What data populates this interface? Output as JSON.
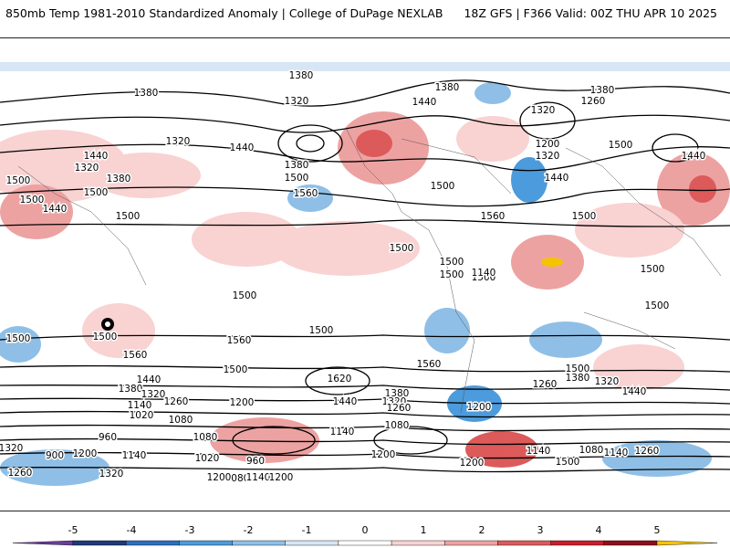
{
  "header": {
    "title_left": "850mb Temp 1981-2010 Standardized Anomaly | College of DuPage NEXLAB",
    "title_right": "18Z GFS | F366 Valid: 00Z THU APR 10 2025"
  },
  "colorbar": {
    "tick_labels": [
      "-5",
      "-4",
      "-3",
      "-2",
      "-1",
      "0",
      "1",
      "2",
      "3",
      "4",
      "5"
    ],
    "colors": [
      "#6a3d9a",
      "#1f3a7a",
      "#2c6fbf",
      "#4c9bdc",
      "#8fbfe6",
      "#d7e6f4",
      "#ffffff",
      "#f9d2d2",
      "#eda2a2",
      "#dd5a5a",
      "#c81e2a",
      "#8e0f1a",
      "#f5c400"
    ]
  },
  "map_labels": [
    {
      "text": "1380",
      "region": "n-pacific-top"
    },
    {
      "text": "1380",
      "region": "nw-pacific"
    },
    {
      "text": "1320",
      "region": "n-pacific-low"
    },
    {
      "text": "1320",
      "region": "e-asia"
    },
    {
      "text": "1440",
      "region": "e-asia-west"
    },
    {
      "text": "1320",
      "region": "siberia"
    },
    {
      "text": "1380",
      "region": "siberia-2"
    },
    {
      "text": "1500",
      "region": "central-asia"
    },
    {
      "text": "1500",
      "region": "central-asia-2"
    },
    {
      "text": "1440",
      "region": "s-asia"
    },
    {
      "text": "1500",
      "region": "se-asia"
    },
    {
      "text": "1440",
      "region": "n-pacific-mid"
    },
    {
      "text": "1380",
      "region": "gulf-alaska"
    },
    {
      "text": "1500",
      "region": "ne-pacific"
    },
    {
      "text": "1560",
      "region": "e-pacific"
    },
    {
      "text": "1440",
      "region": "canada"
    },
    {
      "text": "1380",
      "region": "hudson"
    },
    {
      "text": "1500",
      "region": "us-east"
    },
    {
      "text": "1560",
      "region": "w-atlantic"
    },
    {
      "text": "1380",
      "region": "n-atlantic"
    },
    {
      "text": "1320",
      "region": "greenland-sea"
    },
    {
      "text": "1260",
      "region": "scandinavia"
    },
    {
      "text": "1200",
      "region": "n-europe"
    },
    {
      "text": "1320",
      "region": "n-europe-2"
    },
    {
      "text": "1440",
      "region": "e-europe"
    },
    {
      "text": "1500",
      "region": "w-russia"
    },
    {
      "text": "1500",
      "region": "mediterranean"
    },
    {
      "text": "1440",
      "region": "ne-asia-right"
    },
    {
      "text": "1500",
      "region": "trop-pacific"
    },
    {
      "text": "1500",
      "region": "trop-atlantic"
    },
    {
      "text": "1500",
      "region": "s-america-n"
    },
    {
      "text": "1500",
      "region": "s-america-n2"
    },
    {
      "text": "1500",
      "region": "w-pacific-south"
    },
    {
      "text": "1500",
      "region": "s-pacific"
    },
    {
      "text": "1500",
      "region": "indian-ocean"
    },
    {
      "text": "1500",
      "region": "australia"
    },
    {
      "text": "1500",
      "region": "w-indian"
    },
    {
      "text": "1500",
      "region": "sw-pacific"
    },
    {
      "text": "1560",
      "region": "s-pacific-2"
    },
    {
      "text": "1560",
      "region": "s-pacific-3"
    },
    {
      "text": "1560",
      "region": "s-atlantic"
    },
    {
      "text": "1620",
      "region": "s-pacific-high"
    },
    {
      "text": "1500",
      "region": "s-pacific-mid"
    },
    {
      "text": "1440",
      "region": "s-indian-1"
    },
    {
      "text": "1380",
      "region": "s-indian-2"
    },
    {
      "text": "1320",
      "region": "s-indian-3"
    },
    {
      "text": "1260",
      "region": "s-indian-4"
    },
    {
      "text": "1140",
      "region": "s-indian-5"
    },
    {
      "text": "1020",
      "region": "s-indian-6"
    },
    {
      "text": "1080",
      "region": "s-indian-7"
    },
    {
      "text": "960",
      "region": "s-indian-8"
    },
    {
      "text": "1200",
      "region": "s-pacific-4"
    },
    {
      "text": "1440",
      "region": "s-pacific-5"
    },
    {
      "text": "1380",
      "region": "s-pacific-6"
    },
    {
      "text": "1320",
      "region": "s-pacific-7"
    },
    {
      "text": "1260",
      "region": "s-pacific-8"
    },
    {
      "text": "1140",
      "region": "s-pacific-9"
    },
    {
      "text": "1080",
      "region": "s-pacific-10"
    },
    {
      "text": "1080",
      "region": "s-pacific-11"
    },
    {
      "text": "960",
      "region": "s-pacific-12"
    },
    {
      "text": "1020",
      "region": "s-pacific-13"
    },
    {
      "text": "1080",
      "region": "s-pacific-14"
    },
    {
      "text": "1140",
      "region": "s-pacific-15"
    },
    {
      "text": "1200",
      "region": "s-pacific-16"
    },
    {
      "text": "1140",
      "region": "drake"
    },
    {
      "text": "1200",
      "region": "s-atlantic-2"
    },
    {
      "text": "1500",
      "region": "s-atlantic-3"
    },
    {
      "text": "1380",
      "region": "s-ocean-1"
    },
    {
      "text": "1320",
      "region": "s-ocean-2"
    },
    {
      "text": "1260",
      "region": "s-ocean-3"
    },
    {
      "text": "1440",
      "region": "s-ocean-4"
    },
    {
      "text": "1500",
      "region": "s-ocean-5"
    },
    {
      "text": "1200",
      "region": "s-ocean-6"
    },
    {
      "text": "1080",
      "region": "s-ocean-7"
    },
    {
      "text": "1140",
      "region": "s-ocean-8"
    },
    {
      "text": "1260",
      "region": "s-ocean-9"
    },
    {
      "text": "1320",
      "region": "s-ocean-10"
    },
    {
      "text": "900",
      "region": "far-sw"
    },
    {
      "text": "1200",
      "region": "far-sw-2"
    },
    {
      "text": "1140",
      "region": "far-sw-3"
    },
    {
      "text": "1260",
      "region": "far-sw-4"
    },
    {
      "text": "1320",
      "region": "far-sw-5"
    },
    {
      "text": "1200",
      "region": "far-sw-6"
    },
    {
      "text": "1200",
      "region": "antarctic-1"
    },
    {
      "text": "1140",
      "region": "antarctic-2"
    },
    {
      "text": "1500",
      "region": "w-south-pacific"
    }
  ]
}
